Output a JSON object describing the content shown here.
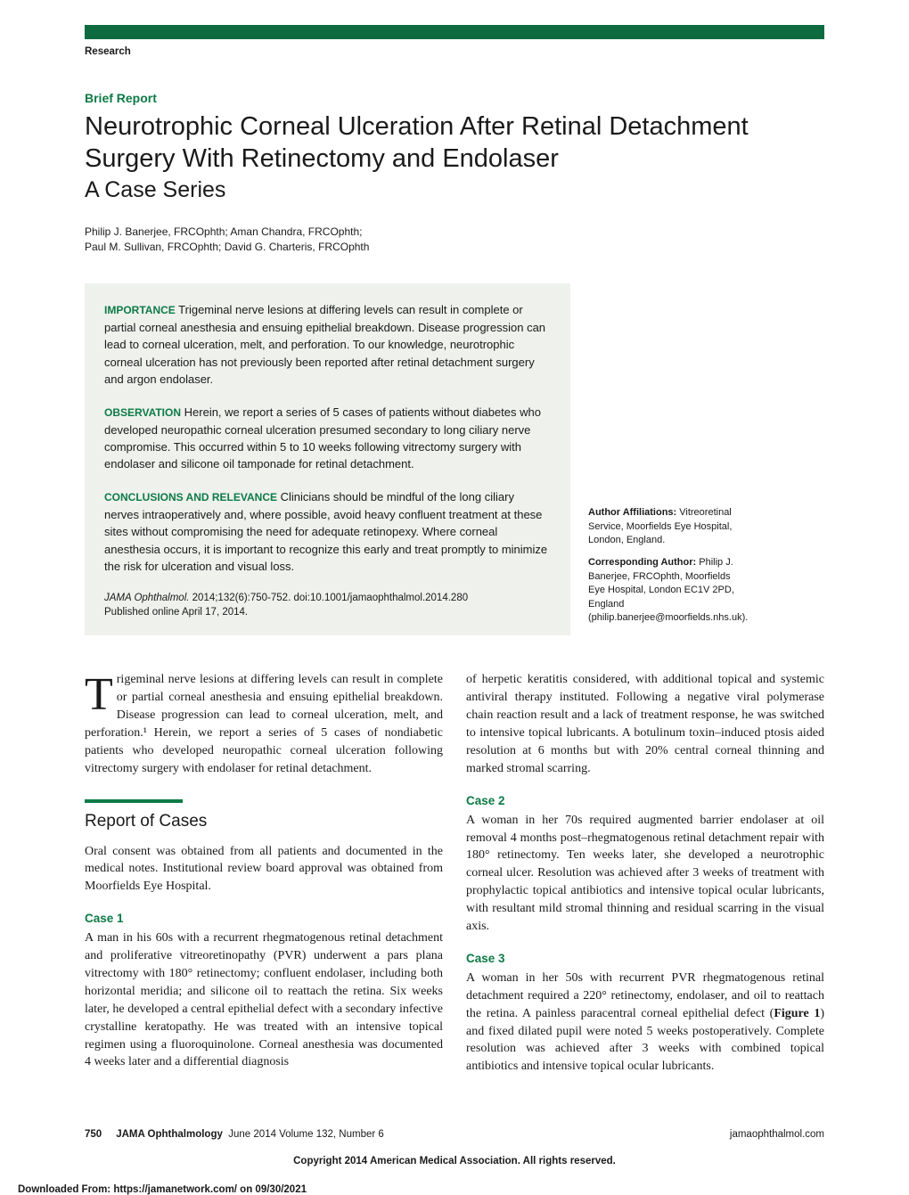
{
  "header": {
    "research_label": "Research",
    "brief_report": "Brief Report",
    "title": "Neurotrophic Corneal Ulceration After Retinal Detachment Surgery With Retinectomy and Endolaser",
    "subtitle": "A Case Series",
    "authors_line1": "Philip J. Banerjee, FRCOphth; Aman Chandra, FRCOphth;",
    "authors_line2": "Paul M. Sullivan, FRCOphth; David G. Charteris, FRCOphth"
  },
  "abstract": {
    "importance_label": "IMPORTANCE",
    "importance_text": "Trigeminal nerve lesions at differing levels can result in complete or partial corneal anesthesia and ensuing epithelial breakdown. Disease progression can lead to corneal ulceration, melt, and perforation. To our knowledge, neurotrophic corneal ulceration has not previously been reported after retinal detachment surgery and argon endolaser.",
    "observation_label": "OBSERVATION",
    "observation_text": "Herein, we report a series of 5 cases of patients without diabetes who developed neuropathic corneal ulceration presumed secondary to long ciliary nerve compromise. This occurred within 5 to 10 weeks following vitrectomy surgery with endolaser and silicone oil tamponade for retinal detachment.",
    "conclusions_label": "CONCLUSIONS AND RELEVANCE",
    "conclusions_text": "Clinicians should be mindful of the long ciliary nerves intraoperatively and, where possible, avoid heavy confluent treatment at these sites without compromising the need for adequate retinopexy. Where corneal anesthesia occurs, it is important to recognize this early and treat promptly to minimize the risk for ulceration and visual loss.",
    "citation_journal": "JAMA Ophthalmol.",
    "citation_text": " 2014;132(6):750-752. doi:10.1001/jamaophthalmol.2014.280",
    "citation_published": "Published online April 17, 2014."
  },
  "sidebar": {
    "affiliations_label": "Author Affiliations:",
    "affiliations_text": " Vitreoretinal Service, Moorfields Eye Hospital, London, England.",
    "corresponding_label": "Corresponding Author:",
    "corresponding_text": " Philip J. Banerjee, FRCOphth, Moorfields Eye Hospital, London EC1V 2PD, England (philip.banerjee@moorfields.nhs.uk)."
  },
  "body": {
    "intro_dropcap": "T",
    "intro_text": "rigeminal nerve lesions at differing levels can result in complete or partial corneal anesthesia and ensuing epithelial breakdown. Disease progression can lead to corneal ulceration, melt, and perforation.¹ Herein, we report a series of 5 cases of nondiabetic patients who developed neuropathic corneal ulceration following vitrectomy surgery with endolaser for retinal detachment.",
    "report_heading": "Report of Cases",
    "report_intro": "Oral consent was obtained from all patients and documented in the medical notes. Institutional review board approval was obtained from Moorfields Eye Hospital.",
    "case1_label": "Case 1",
    "case1_text": "A man in his 60s with a recurrent rhegmatogenous retinal detachment and proliferative vitreoretinopathy (PVR) underwent a pars plana vitrectomy with 180° retinectomy; confluent endolaser, including both horizontal meridia; and silicone oil to reattach the retina. Six weeks later, he developed a central epithelial defect with a secondary infective crystalline keratopathy. He was treated with an intensive topical regimen using a fluoroquinolone. Corneal anesthesia was documented 4 weeks later and a differential diagnosis",
    "col2_top": "of herpetic keratitis considered, with additional topical and systemic antiviral therapy instituted. Following a negative viral polymerase chain reaction result and a lack of treatment response, he was switched to intensive topical lubricants. A botulinum toxin–induced ptosis aided resolution at 6 months but with 20% central corneal thinning and marked stromal scarring.",
    "case2_label": "Case 2",
    "case2_text": "A woman in her 70s required augmented barrier endolaser at oil removal 4 months post–rhegmatogenous retinal detachment repair with 180° retinectomy. Ten weeks later, she developed a neurotrophic corneal ulcer. Resolution was achieved after 3 weeks of treatment with prophylactic topical antibiotics and intensive topical ocular lubricants, with resultant mild stromal thinning and residual scarring in the visual axis.",
    "case3_label": "Case 3",
    "case3_text_a": "A woman in her 50s with recurrent PVR rhegmatogenous retinal detachment required a 220° retinectomy, endolaser, and oil to reattach the retina. A painless paracentral corneal epithelial defect (",
    "case3_figure": "Figure 1",
    "case3_text_b": ") and fixed dilated pupil were noted 5 weeks postoperatively. Complete resolution was achieved after 3 weeks with combined topical antibiotics and intensive topical ocular lubricants."
  },
  "footer": {
    "page_num": "750",
    "journal": "JAMA Ophthalmology",
    "issue": "June 2014  Volume 132, Number 6",
    "url": "jamaophthalmol.com",
    "copyright": "Copyright 2014 American Medical Association. All rights reserved.",
    "download": "Downloaded From: https://jamanetwork.com/ on 09/30/2021"
  },
  "colors": {
    "green": "#0d7a46",
    "dark_green_bar": "#0d6b3f",
    "abstract_bg": "#eff1ed"
  }
}
